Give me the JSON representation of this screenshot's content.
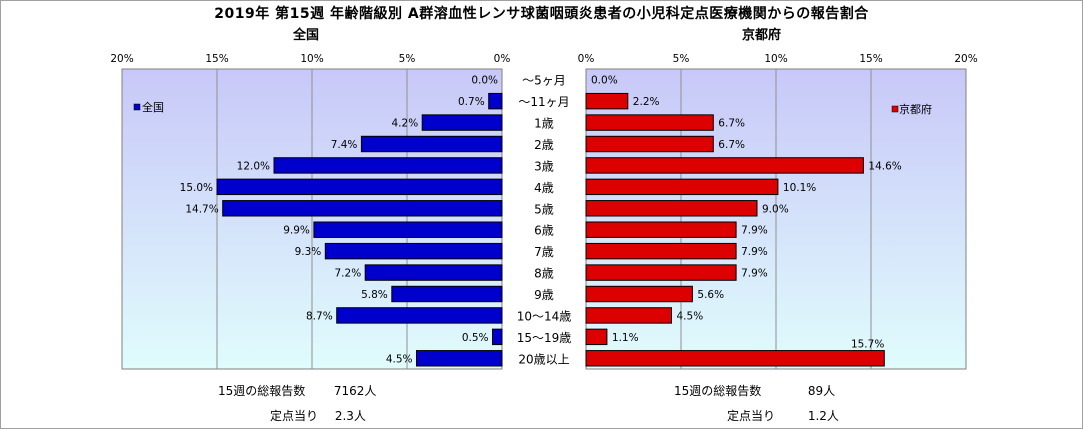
{
  "title": "2019年 第15週 年齢階級別 A群溶血性レンサ球菌咽頭炎患者の小児科定点医療機関からの報告割合",
  "colors": {
    "left_bar": "#0000cc",
    "right_bar": "#dd0000",
    "plot_top": "#c8c8f8",
    "plot_bottom": "#e0fcfc"
  },
  "chart_data": {
    "type": "bar",
    "categories": [
      "～5ヶ月",
      "～11ヶ月",
      "1歳",
      "2歳",
      "3歳",
      "4歳",
      "5歳",
      "6歳",
      "7歳",
      "8歳",
      "9歳",
      "10～14歳",
      "15～19歳",
      "20歳以上"
    ],
    "series": [
      {
        "name": "全国",
        "values": [
          0.0,
          0.7,
          4.2,
          7.4,
          12.0,
          15.0,
          14.7,
          9.9,
          9.3,
          7.2,
          5.8,
          8.7,
          0.5,
          4.5
        ]
      },
      {
        "name": "京都府",
        "values": [
          0.0,
          2.2,
          6.7,
          6.7,
          14.6,
          10.1,
          9.0,
          7.9,
          7.9,
          7.9,
          5.6,
          4.5,
          1.1,
          15.7
        ]
      }
    ],
    "panel_titles": [
      "全国",
      "京都府"
    ],
    "xlim": [
      0,
      20
    ],
    "ticks_left": [
      "20%",
      "15%",
      "10%",
      "5%",
      "0%"
    ],
    "ticks_right": [
      "0%",
      "5%",
      "10%",
      "15%",
      "20%"
    ],
    "grid": true,
    "legend": [
      "top-left",
      "top-right"
    ]
  },
  "footer": {
    "left": {
      "total_label": "15週の総報告数",
      "total_value": "7162人",
      "per_label": "定点当り",
      "per_value": "2.3人"
    },
    "right": {
      "total_label": "15週の総報告数",
      "total_value": "89人",
      "per_label": "定点当り",
      "per_value": "1.2人"
    }
  }
}
